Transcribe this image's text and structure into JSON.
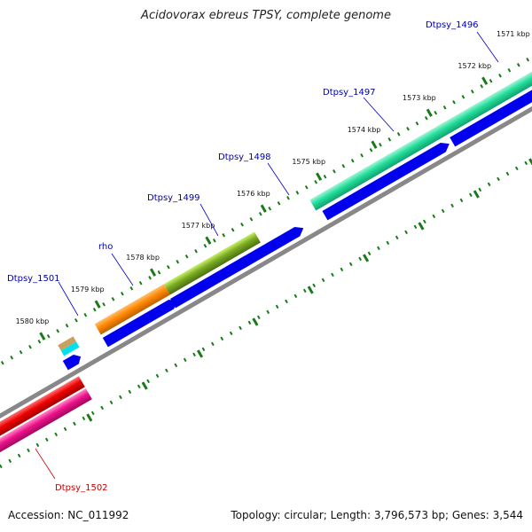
{
  "title": "Acidovorax ebreus TPSY, complete genome",
  "footer": {
    "accession": "Accession: NC_011992",
    "summary": "Topology: circular; Length: 3,796,573 bp; Genes: 3,544"
  },
  "ticks": [
    {
      "kbp": 1571,
      "label": "1571 kbp"
    },
    {
      "kbp": 1572,
      "label": "1572 kbp"
    },
    {
      "kbp": 1573,
      "label": "1573 kbp"
    },
    {
      "kbp": 1574,
      "label": "1574 kbp"
    },
    {
      "kbp": 1575,
      "label": "1575 kbp"
    },
    {
      "kbp": 1576,
      "label": "1576 kbp"
    },
    {
      "kbp": 1577,
      "label": "1577 kbp"
    },
    {
      "kbp": 1578,
      "label": "1578 kbp"
    },
    {
      "kbp": 1579,
      "label": "1579 kbp"
    },
    {
      "kbp": 1580,
      "label": "1580 kbp"
    }
  ],
  "genes": [
    {
      "name": "Dtpsy_1496",
      "color": "#0000aa"
    },
    {
      "name": "Dtpsy_1497",
      "color": "#0000aa"
    },
    {
      "name": "Dtpsy_1498",
      "color": "#0000aa"
    },
    {
      "name": "Dtpsy_1499",
      "color": "#0000aa"
    },
    {
      "name": "rho",
      "color": "#0000aa"
    },
    {
      "name": "Dtpsy_1501",
      "color": "#0000aa"
    },
    {
      "name": "Dtpsy_1502",
      "color": "#cc0000"
    }
  ],
  "colors": {
    "tick": "#1a7a1a",
    "cds_track": "#0000ee",
    "backbone": "#888888",
    "cog_green_teal": "#22dd99",
    "cog_olive": "#7aaa22",
    "cog_orange": "#ff8800",
    "cog_tan": "#c8a060",
    "cog_cyan": "#00e0f0",
    "cog_red": "#ee0000",
    "cog_pink": "#ee1188"
  }
}
